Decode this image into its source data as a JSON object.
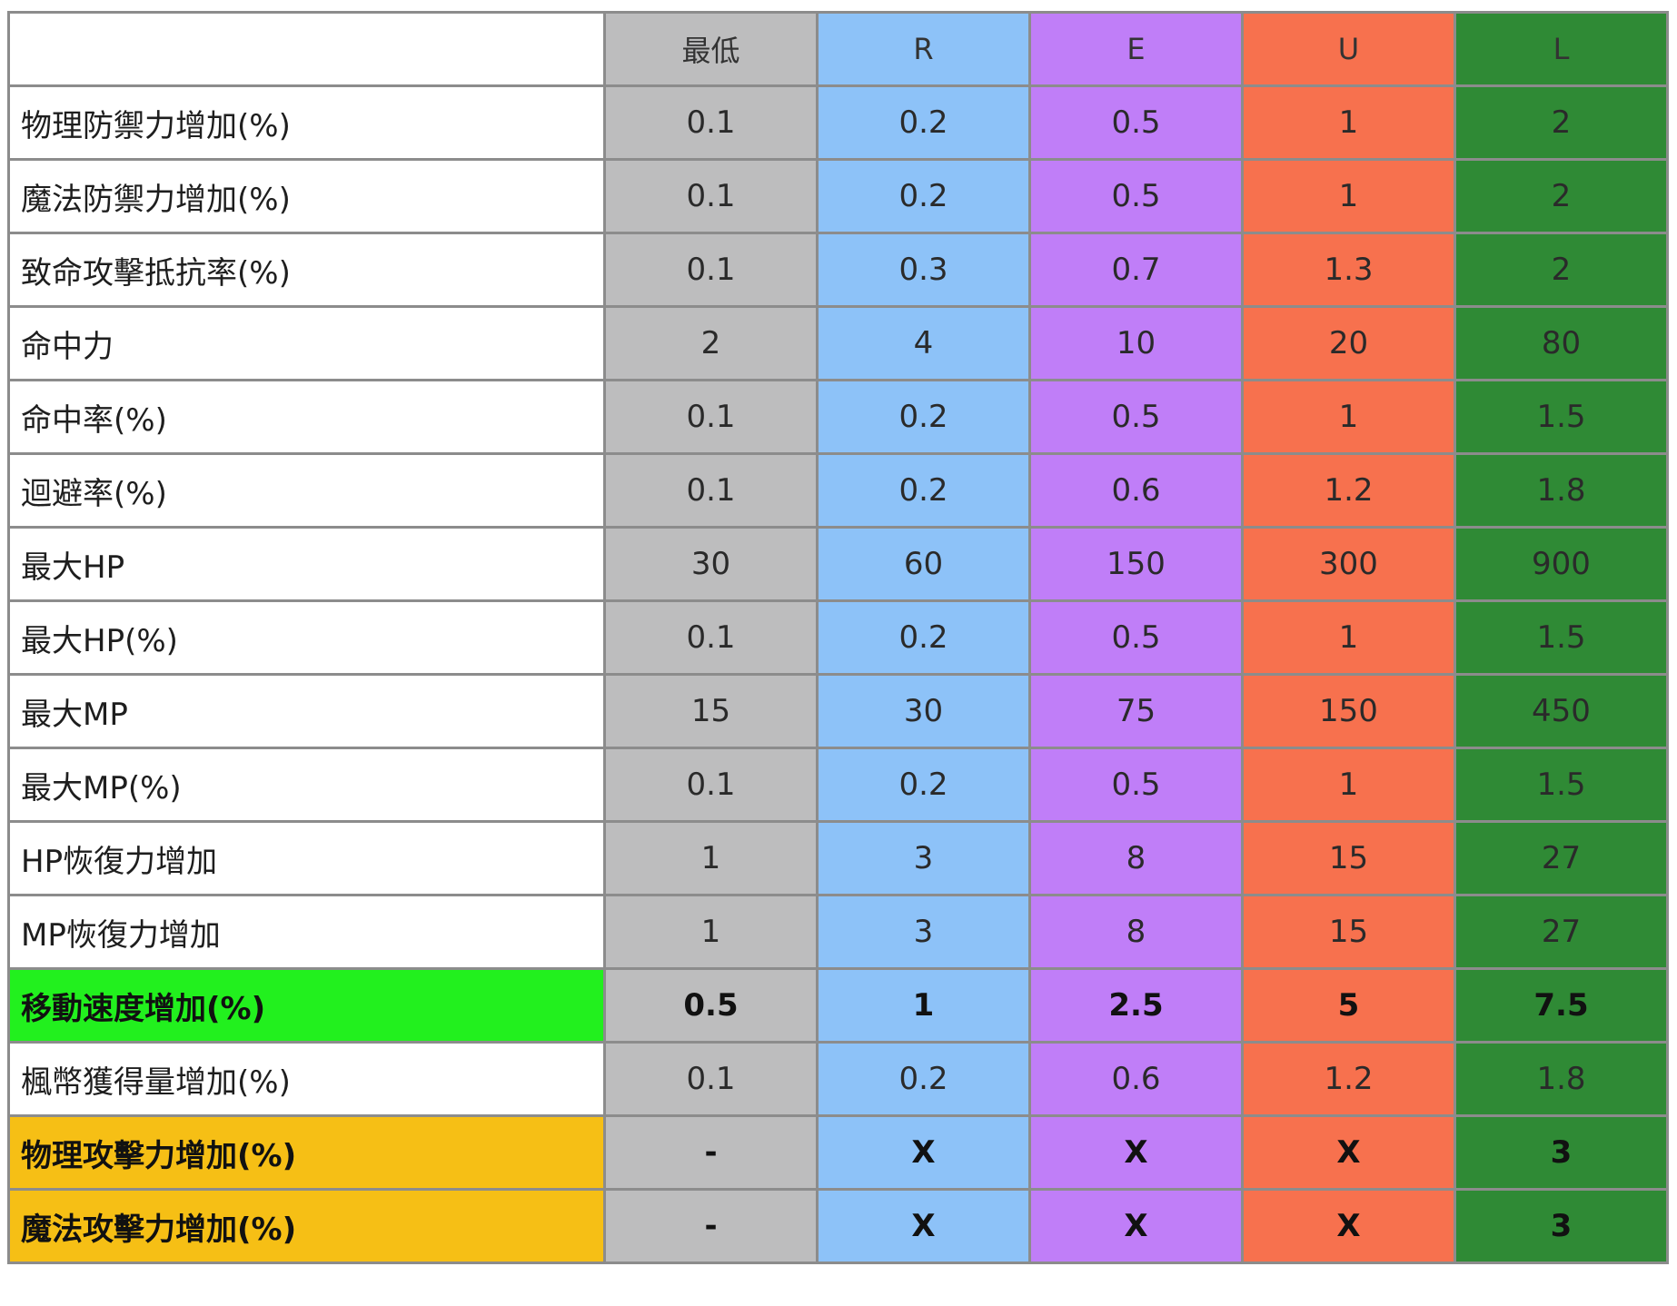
{
  "table": {
    "columns": [
      "最低",
      "R",
      "E",
      "U",
      "L"
    ],
    "rows": [
      {
        "label": "物理防禦力增加(%)",
        "values": [
          "0.1",
          "0.2",
          "0.5",
          "1",
          "2"
        ]
      },
      {
        "label": "魔法防禦力增加(%)",
        "values": [
          "0.1",
          "0.2",
          "0.5",
          "1",
          "2"
        ]
      },
      {
        "label": "致命攻擊抵抗率(%)",
        "values": [
          "0.1",
          "0.3",
          "0.7",
          "1.3",
          "2"
        ]
      },
      {
        "label": "命中力",
        "values": [
          "2",
          "4",
          "10",
          "20",
          "80"
        ]
      },
      {
        "label": "命中率(%)",
        "values": [
          "0.1",
          "0.2",
          "0.5",
          "1",
          "1.5"
        ]
      },
      {
        "label": "迴避率(%)",
        "values": [
          "0.1",
          "0.2",
          "0.6",
          "1.2",
          "1.8"
        ]
      },
      {
        "label": "最大HP",
        "values": [
          "30",
          "60",
          "150",
          "300",
          "900"
        ]
      },
      {
        "label": "最大HP(%)",
        "values": [
          "0.1",
          "0.2",
          "0.5",
          "1",
          "1.5"
        ]
      },
      {
        "label": "最大MP",
        "values": [
          "15",
          "30",
          "75",
          "150",
          "450"
        ]
      },
      {
        "label": "最大MP(%)",
        "values": [
          "0.1",
          "0.2",
          "0.5",
          "1",
          "1.5"
        ]
      },
      {
        "label": "HP恢復力增加",
        "values": [
          "1",
          "3",
          "8",
          "15",
          "27"
        ]
      },
      {
        "label": "MP恢復力增加",
        "values": [
          "1",
          "3",
          "8",
          "15",
          "27"
        ]
      },
      {
        "label": "移動速度增加(%)",
        "values": [
          "0.5",
          "1",
          "2.5",
          "5",
          "7.5"
        ]
      },
      {
        "label": "楓幣獲得量增加(%)",
        "values": [
          "0.1",
          "0.2",
          "0.6",
          "1.2",
          "1.8"
        ]
      },
      {
        "label": "物理攻擊力增加(%)",
        "values": [
          "-",
          "X",
          "X",
          "X",
          "3"
        ]
      },
      {
        "label": "魔法攻擊力增加(%)",
        "values": [
          "-",
          "X",
          "X",
          "X",
          "3"
        ]
      }
    ]
  },
  "colors": {
    "tier_min": "#bdbdbe",
    "tier_r": "#8dc2f8",
    "tier_e": "#c07ef8",
    "tier_u": "#f7714e",
    "tier_l": "#2f8a35",
    "highlight_green": "#22f01e",
    "highlight_orange": "#f6bf15"
  }
}
